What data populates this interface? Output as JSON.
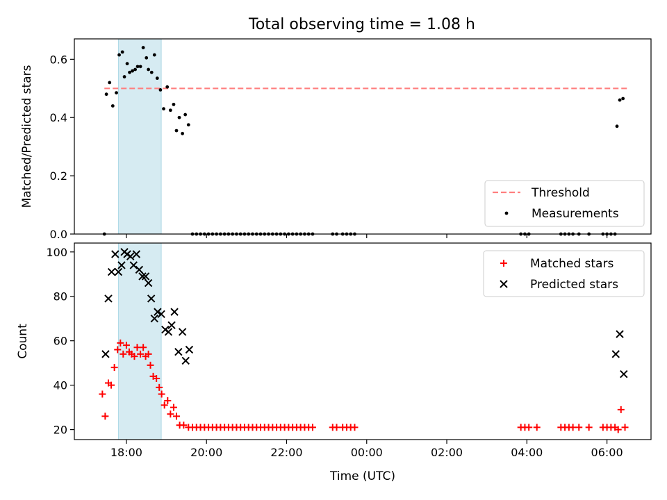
{
  "chart_data": [
    {
      "type": "scatter",
      "title": "Total observing time = 1.08 h",
      "xlabel": "",
      "ylabel": "Matched/Predicted stars",
      "xlim": [
        16.7,
        31.1
      ],
      "ylim": [
        0,
        0.67
      ],
      "yticks": [
        0.0,
        0.2,
        0.4,
        0.6
      ],
      "yticklabels": [
        "0.0",
        "0.2",
        "0.4",
        "0.6"
      ],
      "xticks": [
        18,
        20,
        22,
        24,
        26,
        28,
        30
      ],
      "highlight_span": [
        17.8,
        18.87
      ],
      "threshold": {
        "label": "Threshold",
        "value": 0.5,
        "x": [
          17.45,
          30.5
        ],
        "color": "#ff7f7f"
      },
      "legend": {
        "position": "lower-right",
        "entries": [
          "Threshold",
          "Measurements"
        ]
      },
      "series": [
        {
          "name": "Measurements",
          "color": "#000000",
          "points": [
            [
              17.45,
              0.0
            ],
            [
              17.5,
              0.48
            ],
            [
              17.58,
              0.52
            ],
            [
              17.66,
              0.44
            ],
            [
              17.75,
              0.485
            ],
            [
              17.82,
              0.615
            ],
            [
              17.9,
              0.625
            ],
            [
              17.95,
              0.54
            ],
            [
              18.02,
              0.585
            ],
            [
              18.08,
              0.555
            ],
            [
              18.15,
              0.56
            ],
            [
              18.22,
              0.565
            ],
            [
              18.28,
              0.575
            ],
            [
              18.35,
              0.575
            ],
            [
              18.42,
              0.64
            ],
            [
              18.5,
              0.605
            ],
            [
              18.55,
              0.565
            ],
            [
              18.63,
              0.555
            ],
            [
              18.7,
              0.615
            ],
            [
              18.77,
              0.535
            ],
            [
              18.85,
              0.495
            ],
            [
              18.93,
              0.43
            ],
            [
              19.02,
              0.505
            ],
            [
              19.1,
              0.425
            ],
            [
              19.18,
              0.445
            ],
            [
              19.25,
              0.355
            ],
            [
              19.32,
              0.4
            ],
            [
              19.4,
              0.345
            ],
            [
              19.47,
              0.41
            ],
            [
              19.55,
              0.375
            ],
            [
              19.65,
              0.0
            ],
            [
              19.75,
              0.0
            ],
            [
              19.85,
              0.0
            ],
            [
              19.95,
              0.0
            ],
            [
              20.05,
              0.0
            ],
            [
              20.15,
              0.0
            ],
            [
              20.25,
              0.0
            ],
            [
              20.35,
              0.0
            ],
            [
              20.45,
              0.0
            ],
            [
              20.55,
              0.0
            ],
            [
              20.65,
              0.0
            ],
            [
              20.75,
              0.0
            ],
            [
              20.85,
              0.0
            ],
            [
              20.95,
              0.0
            ],
            [
              21.05,
              0.0
            ],
            [
              21.15,
              0.0
            ],
            [
              21.25,
              0.0
            ],
            [
              21.35,
              0.0
            ],
            [
              21.45,
              0.0
            ],
            [
              21.55,
              0.0
            ],
            [
              21.65,
              0.0
            ],
            [
              21.75,
              0.0
            ],
            [
              21.85,
              0.0
            ],
            [
              21.95,
              0.0
            ],
            [
              22.05,
              0.0
            ],
            [
              22.15,
              0.0
            ],
            [
              22.25,
              0.0
            ],
            [
              22.35,
              0.0
            ],
            [
              22.45,
              0.0
            ],
            [
              22.55,
              0.0
            ],
            [
              22.65,
              0.0
            ],
            [
              23.15,
              0.0
            ],
            [
              23.25,
              0.0
            ],
            [
              23.4,
              0.0
            ],
            [
              23.5,
              0.0
            ],
            [
              23.6,
              0.0
            ],
            [
              23.7,
              0.0
            ],
            [
              27.85,
              0.0
            ],
            [
              27.95,
              0.0
            ],
            [
              28.05,
              0.0
            ],
            [
              28.85,
              0.0
            ],
            [
              28.95,
              0.0
            ],
            [
              29.05,
              0.0
            ],
            [
              29.15,
              0.0
            ],
            [
              29.3,
              0.0
            ],
            [
              29.55,
              0.0
            ],
            [
              29.9,
              0.0
            ],
            [
              30.0,
              0.0
            ],
            [
              30.1,
              0.0
            ],
            [
              30.2,
              0.0
            ],
            [
              30.25,
              0.37
            ],
            [
              30.32,
              0.46
            ],
            [
              30.4,
              0.465
            ]
          ]
        }
      ]
    },
    {
      "type": "scatter",
      "title": "",
      "xlabel": "Time (UTC)",
      "ylabel": "Count",
      "xlim": [
        16.7,
        31.1
      ],
      "ylim": [
        15.5,
        104
      ],
      "yticks": [
        20,
        40,
        60,
        80,
        100
      ],
      "yticklabels": [
        "20",
        "40",
        "60",
        "80",
        "100"
      ],
      "xticks": [
        18,
        20,
        22,
        24,
        26,
        28,
        30
      ],
      "xticklabels": [
        "18:00",
        "20:00",
        "22:00",
        "00:00",
        "02:00",
        "04:00",
        "06:00"
      ],
      "highlight_span": [
        17.8,
        18.87
      ],
      "legend": {
        "position": "upper-right",
        "entries": [
          "Matched stars",
          "Predicted stars"
        ]
      },
      "series": [
        {
          "name": "Matched stars",
          "marker": "+",
          "color": "#ff0000",
          "points": [
            [
              17.4,
              36
            ],
            [
              17.47,
              26
            ],
            [
              17.55,
              41
            ],
            [
              17.62,
              40
            ],
            [
              17.7,
              48
            ],
            [
              17.78,
              56
            ],
            [
              17.85,
              59
            ],
            [
              17.92,
              54
            ],
            [
              18.0,
              58
            ],
            [
              18.07,
              55
            ],
            [
              18.13,
              54
            ],
            [
              18.2,
              53
            ],
            [
              18.27,
              57
            ],
            [
              18.35,
              54
            ],
            [
              18.42,
              57
            ],
            [
              18.48,
              53
            ],
            [
              18.55,
              54
            ],
            [
              18.6,
              49
            ],
            [
              18.67,
              44
            ],
            [
              18.75,
              43
            ],
            [
              18.82,
              39
            ],
            [
              18.88,
              36
            ],
            [
              18.95,
              31
            ],
            [
              19.03,
              33
            ],
            [
              19.1,
              27
            ],
            [
              19.18,
              30
            ],
            [
              19.25,
              26
            ],
            [
              19.33,
              22
            ],
            [
              19.43,
              22
            ],
            [
              19.55,
              21
            ],
            [
              19.65,
              21
            ],
            [
              19.75,
              21
            ],
            [
              19.85,
              21
            ],
            [
              19.95,
              21
            ],
            [
              20.05,
              21
            ],
            [
              20.15,
              21
            ],
            [
              20.25,
              21
            ],
            [
              20.35,
              21
            ],
            [
              20.45,
              21
            ],
            [
              20.55,
              21
            ],
            [
              20.65,
              21
            ],
            [
              20.75,
              21
            ],
            [
              20.85,
              21
            ],
            [
              20.95,
              21
            ],
            [
              21.05,
              21
            ],
            [
              21.15,
              21
            ],
            [
              21.25,
              21
            ],
            [
              21.35,
              21
            ],
            [
              21.45,
              21
            ],
            [
              21.55,
              21
            ],
            [
              21.65,
              21
            ],
            [
              21.75,
              21
            ],
            [
              21.85,
              21
            ],
            [
              21.95,
              21
            ],
            [
              22.05,
              21
            ],
            [
              22.15,
              21
            ],
            [
              22.25,
              21
            ],
            [
              22.35,
              21
            ],
            [
              22.45,
              21
            ],
            [
              22.55,
              21
            ],
            [
              22.65,
              21
            ],
            [
              23.15,
              21
            ],
            [
              23.25,
              21
            ],
            [
              23.4,
              21
            ],
            [
              23.5,
              21
            ],
            [
              23.6,
              21
            ],
            [
              23.7,
              21
            ],
            [
              27.85,
              21
            ],
            [
              27.95,
              21
            ],
            [
              28.05,
              21
            ],
            [
              28.25,
              21
            ],
            [
              28.85,
              21
            ],
            [
              28.95,
              21
            ],
            [
              29.05,
              21
            ],
            [
              29.15,
              21
            ],
            [
              29.3,
              21
            ],
            [
              29.55,
              21
            ],
            [
              29.9,
              21
            ],
            [
              30.0,
              21
            ],
            [
              30.1,
              21
            ],
            [
              30.2,
              21
            ],
            [
              30.28,
              20
            ],
            [
              30.35,
              29
            ],
            [
              30.45,
              21
            ]
          ]
        },
        {
          "name": "Predicted stars",
          "marker": "x",
          "color": "#000000",
          "points": [
            [
              17.48,
              54
            ],
            [
              17.55,
              79
            ],
            [
              17.63,
              91
            ],
            [
              17.72,
              99
            ],
            [
              17.8,
              91
            ],
            [
              17.88,
              94
            ],
            [
              17.95,
              100
            ],
            [
              18.02,
              99
            ],
            [
              18.1,
              98
            ],
            [
              18.18,
              94
            ],
            [
              18.25,
              99
            ],
            [
              18.32,
              92
            ],
            [
              18.4,
              89
            ],
            [
              18.48,
              89
            ],
            [
              18.55,
              86
            ],
            [
              18.62,
              79
            ],
            [
              18.7,
              70
            ],
            [
              18.78,
              73
            ],
            [
              18.87,
              72
            ],
            [
              18.97,
              65
            ],
            [
              19.05,
              64
            ],
            [
              19.13,
              67
            ],
            [
              19.2,
              73
            ],
            [
              19.3,
              55
            ],
            [
              19.4,
              64
            ],
            [
              19.48,
              51
            ],
            [
              19.57,
              56
            ],
            [
              30.22,
              54
            ],
            [
              30.32,
              63
            ],
            [
              30.42,
              45
            ]
          ]
        }
      ]
    }
  ]
}
